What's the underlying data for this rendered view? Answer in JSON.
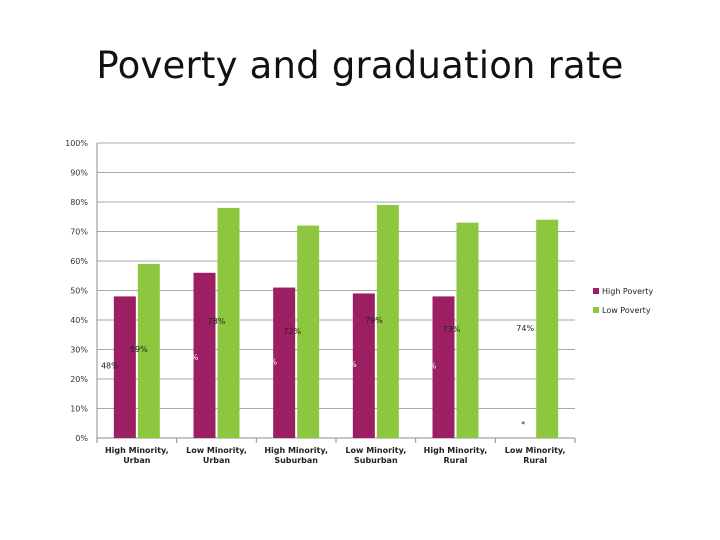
{
  "slide": {
    "title": "Poverty and graduation rate"
  },
  "chart_data": {
    "type": "bar",
    "title": "Poverty and graduation rate",
    "categories": [
      [
        "High Minority,",
        "Urban"
      ],
      [
        "Low Minority,",
        "Urban"
      ],
      [
        "High Minority,",
        "Suburban"
      ],
      [
        "Low Minority,",
        "Suburban"
      ],
      [
        "High Minority,",
        "Rural"
      ],
      [
        "Low Minority,",
        "Rural"
      ]
    ],
    "series": [
      {
        "name": "High Poverty",
        "color": "#9c1f63",
        "values": [
          48,
          56,
          51,
          49,
          48,
          null
        ],
        "labels": [
          "48%",
          "56%",
          "51%",
          "49%",
          "48%",
          null
        ]
      },
      {
        "name": "Low Poverty",
        "color": "#8dc63f",
        "values": [
          59,
          78,
          72,
          79,
          73,
          74
        ],
        "labels": [
          "59%",
          "78%",
          "72%",
          "79%",
          "73%",
          "74%"
        ]
      }
    ],
    "y_ticks": [
      "0%",
      "10%",
      "20%",
      "30%",
      "40%",
      "50%",
      "60%",
      "70%",
      "80%",
      "90%",
      "100%"
    ],
    "ylim": [
      0,
      100
    ],
    "grid": true,
    "legend_position": "right",
    "annotations": [
      {
        "text": "*",
        "category_index": 5
      }
    ]
  }
}
